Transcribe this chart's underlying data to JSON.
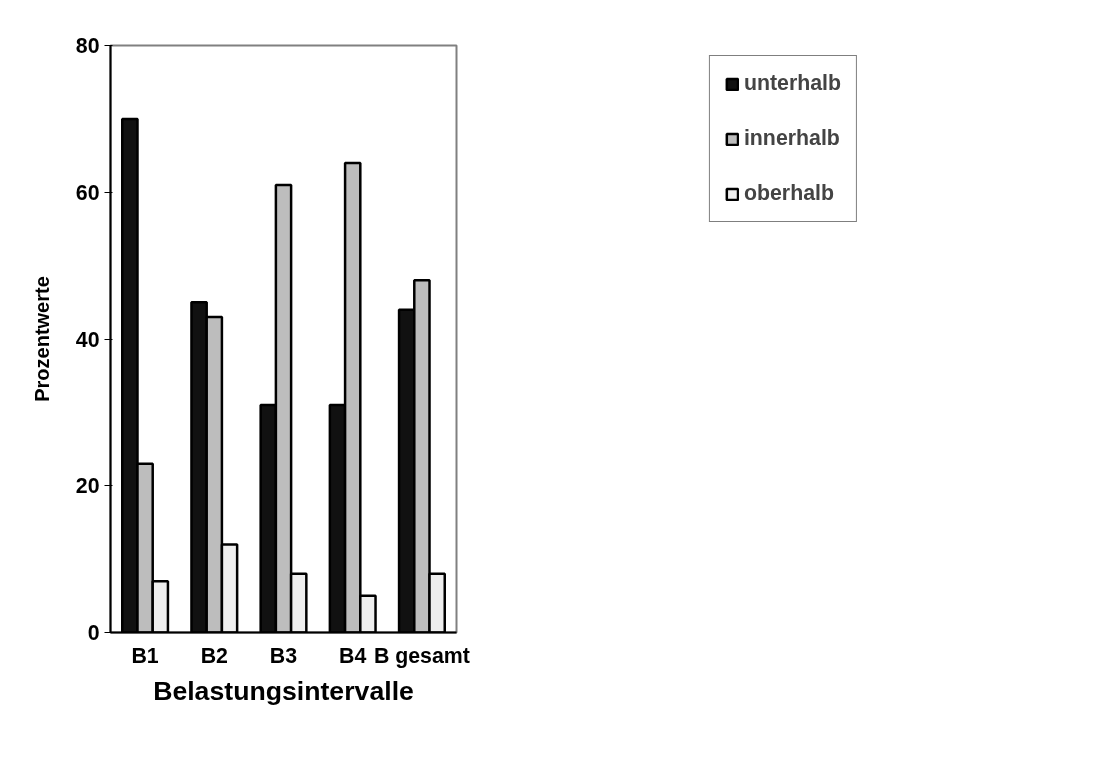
{
  "chart_data": {
    "type": "bar",
    "xlabel": "Belastungsintervalle",
    "ylabel": "Prozentwerte",
    "categories": [
      "B1",
      "B2",
      "B3",
      "B4",
      "B gesamt"
    ],
    "series": [
      {
        "name": "unterhalb",
        "color": "#111111",
        "values": [
          70,
          45,
          31,
          31,
          44
        ]
      },
      {
        "name": "innerhalb",
        "color": "#bdbdbd",
        "values": [
          23,
          43,
          61,
          64,
          48
        ]
      },
      {
        "name": "oberhalb",
        "color": "#eeeeee",
        "values": [
          7,
          12,
          8,
          5,
          8
        ]
      }
    ],
    "ylim": [
      0,
      80
    ],
    "yticks": [
      0,
      20,
      40,
      60,
      80
    ],
    "grid": false,
    "legend": "right"
  }
}
